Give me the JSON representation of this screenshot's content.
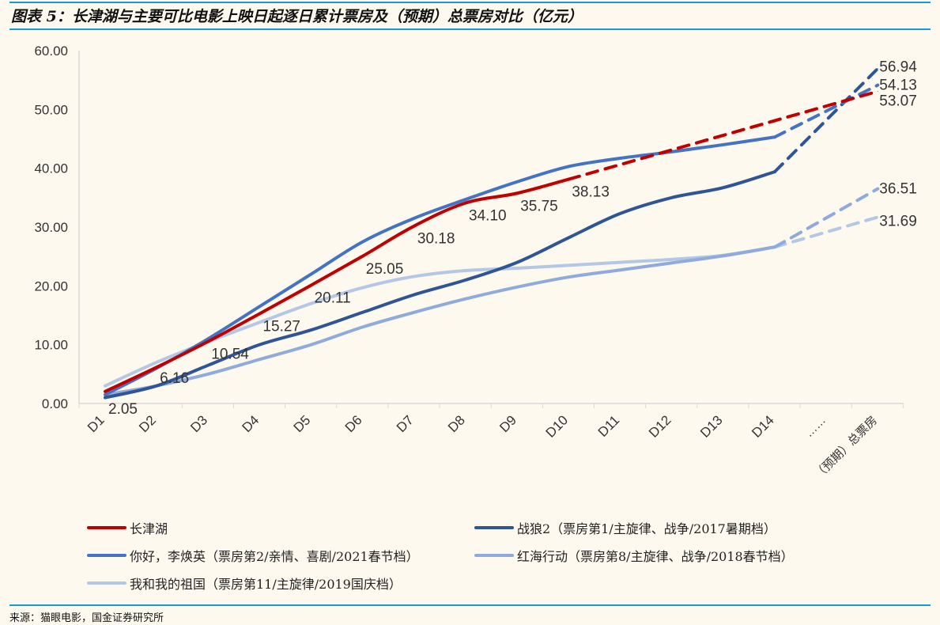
{
  "title": "图表 5：长津湖与主要可比电影上映日起逐日累计票房及（预期）总票房对比（亿元）",
  "source": "来源：猫眼电影，国金证券研究所",
  "chart_data": {
    "type": "line",
    "title": "图表 5：长津湖与主要可比电影上映日起逐日累计票房及（预期）总票房对比（亿元）",
    "categories": [
      "D1",
      "D2",
      "D3",
      "D4",
      "D5",
      "D6",
      "D7",
      "D8",
      "D9",
      "D10",
      "D11",
      "D12",
      "D13",
      "D14",
      "……",
      "（预期）总票房"
    ],
    "ylim": [
      0,
      60
    ],
    "yticks": [
      "0.00",
      "10.00",
      "20.00",
      "30.00",
      "40.00",
      "50.00",
      "60.00"
    ],
    "grid": false,
    "legend": "bottom",
    "series": [
      {
        "name": "长津湖",
        "color": "#C00000",
        "values": [
          2.05,
          6.16,
          10.54,
          15.27,
          20.11,
          25.05,
          30.18,
          34.1,
          35.75,
          38.13,
          null,
          null,
          null,
          null,
          null,
          53.07
        ],
        "labels": [
          "2.05",
          "6.16",
          "10.54",
          "15.27",
          "20.11",
          "25.05",
          "30.18",
          "34.10",
          "35.75",
          "38.13",
          "",
          "",
          "",
          "",
          "",
          "53.07"
        ]
      },
      {
        "name": "战狼2（票房第1/主旋律、战争/2017暑期档）",
        "color": "#2F5597",
        "values": [
          1.0,
          3.0,
          6.5,
          10.0,
          12.5,
          15.5,
          18.5,
          21.0,
          24.0,
          28.2,
          32.3,
          35.0,
          36.7,
          39.4,
          null,
          56.94
        ],
        "labels": [
          "",
          "",
          "",
          "",
          "",
          "",
          "",
          "",
          "",
          "",
          "",
          "",
          "",
          "",
          "",
          "56.94"
        ]
      },
      {
        "name": "你好，李焕英（票房第2/亲情、喜剧/2021春节档）",
        "color": "#4472C4",
        "values": [
          1.5,
          6.0,
          11.0,
          16.5,
          22.0,
          27.5,
          31.5,
          34.7,
          37.7,
          40.3,
          41.7,
          42.8,
          44.0,
          45.3,
          null,
          54.13
        ],
        "labels": [
          "",
          "",
          "",
          "",
          "",
          "",
          "",
          "",
          "",
          "",
          "",
          "",
          "",
          "",
          "",
          "54.13"
        ]
      },
      {
        "name": "红海行动（票房第8/主旋律、战争/2018春节档）",
        "color": "#8FAADC",
        "values": [
          1.5,
          3.0,
          5.0,
          7.5,
          10.0,
          13.0,
          15.5,
          17.8,
          19.8,
          21.5,
          22.7,
          23.9,
          25.1,
          26.6,
          null,
          36.51
        ],
        "labels": [
          "",
          "",
          "",
          "",
          "",
          "",
          "",
          "",
          "",
          "",
          "",
          "",
          "",
          "",
          "",
          "36.51"
        ]
      },
      {
        "name": "我和我的祖国（票房第11/主旋律/2019国庆档）",
        "color": "#B4C7E7",
        "values": [
          3.0,
          7.0,
          10.5,
          13.8,
          17.0,
          19.7,
          21.6,
          22.6,
          23.0,
          23.5,
          24.0,
          24.5,
          25.2,
          26.6,
          null,
          31.69
        ],
        "labels": [
          "",
          "",
          "",
          "",
          "",
          "",
          "",
          "",
          "",
          "",
          "",
          "",
          "",
          "",
          "",
          "31.69"
        ]
      }
    ]
  }
}
